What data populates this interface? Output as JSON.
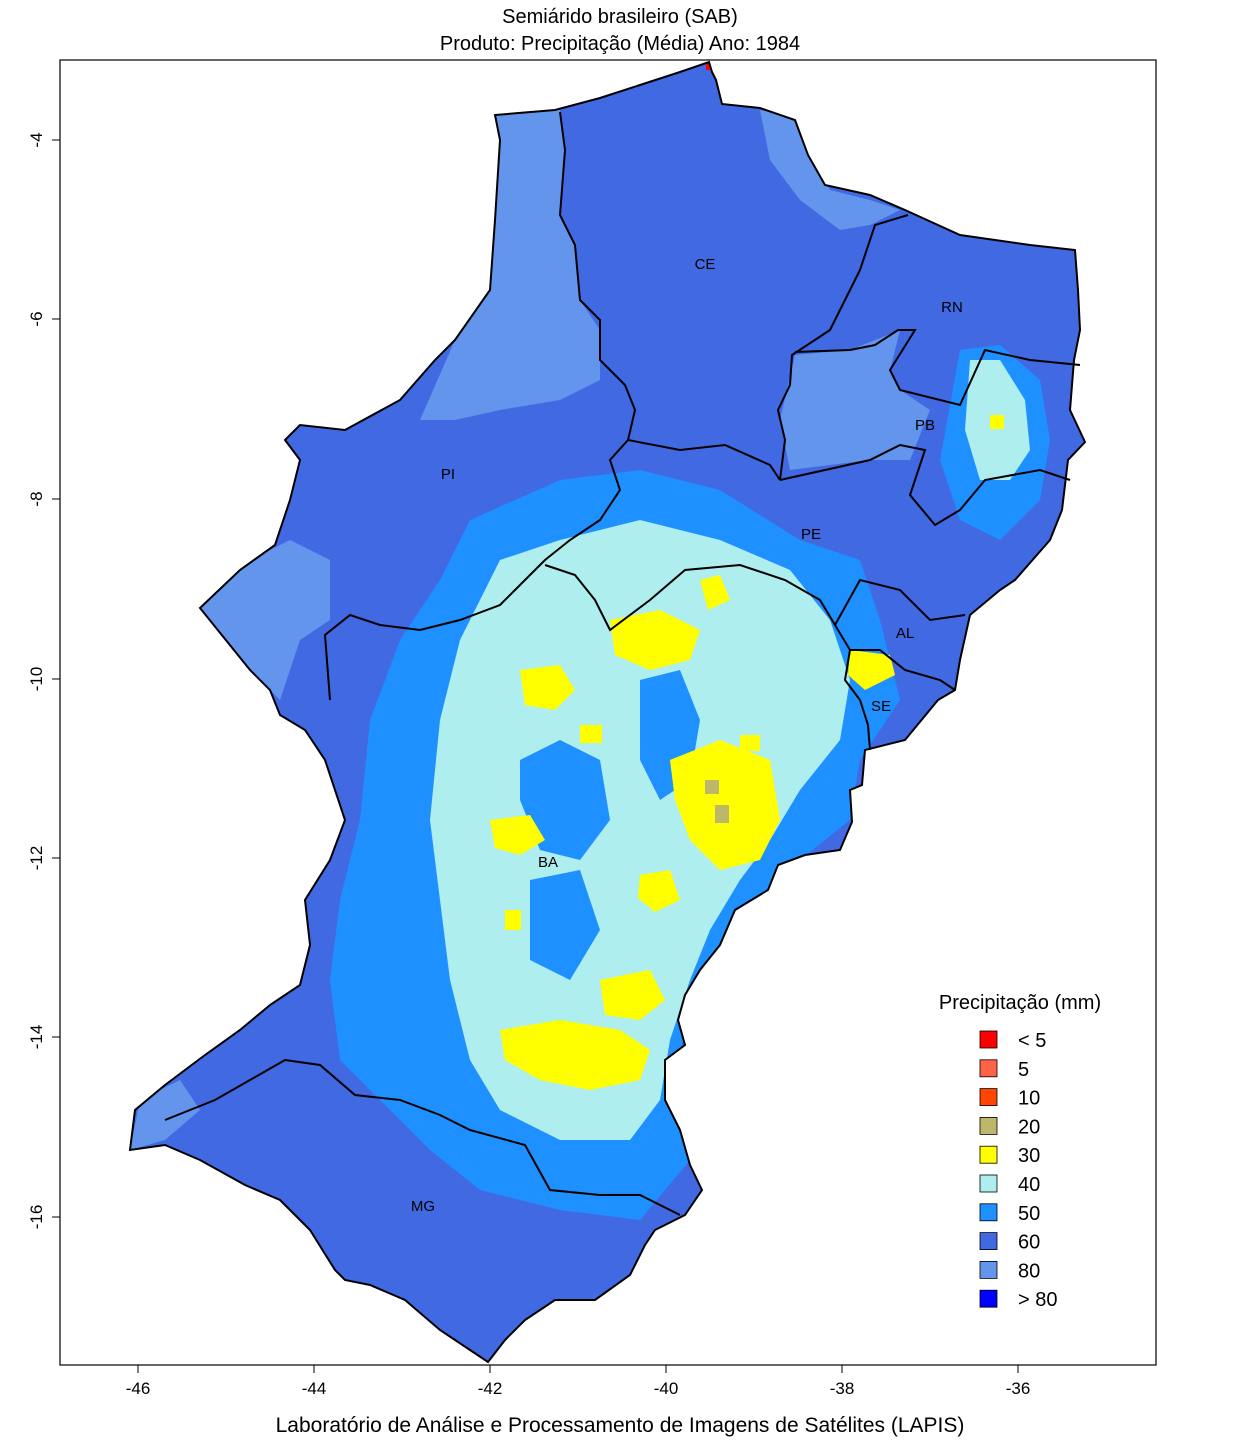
{
  "title_line1": "Semiárido brasileiro (SAB)",
  "title_line2": "Produto: Precipitação (Média)     Ano:  1984",
  "footer": "Laboratório de Análise e Processamento de Imagens de Satélites (LAPIS)",
  "map": {
    "x_ticks": [
      "-46",
      "-44",
      "-42",
      "-40",
      "-38",
      "-36"
    ],
    "y_ticks": [
      "-4",
      "-6",
      "-8",
      "-10",
      "-12",
      "-14",
      "-16"
    ],
    "states": [
      "CE",
      "RN",
      "PB",
      "PI",
      "PE",
      "AL",
      "SE",
      "BA",
      "MG"
    ]
  },
  "legend": {
    "title": "Precipitação (mm)",
    "items": [
      {
        "label": "< 5",
        "color": "#ff0000"
      },
      {
        "label": "5",
        "color": "#ff6347"
      },
      {
        "label": "10",
        "color": "#ff4500"
      },
      {
        "label": "20",
        "color": "#bdb76b"
      },
      {
        "label": "30",
        "color": "#ffff00"
      },
      {
        "label": "40",
        "color": "#aeeeee"
      },
      {
        "label": "50",
        "color": "#1e90ff"
      },
      {
        "label": "60",
        "color": "#4169e1"
      },
      {
        "label": "80",
        "color": "#6495ed"
      },
      {
        "label": "> 80",
        "color": "#0000ff"
      }
    ]
  }
}
